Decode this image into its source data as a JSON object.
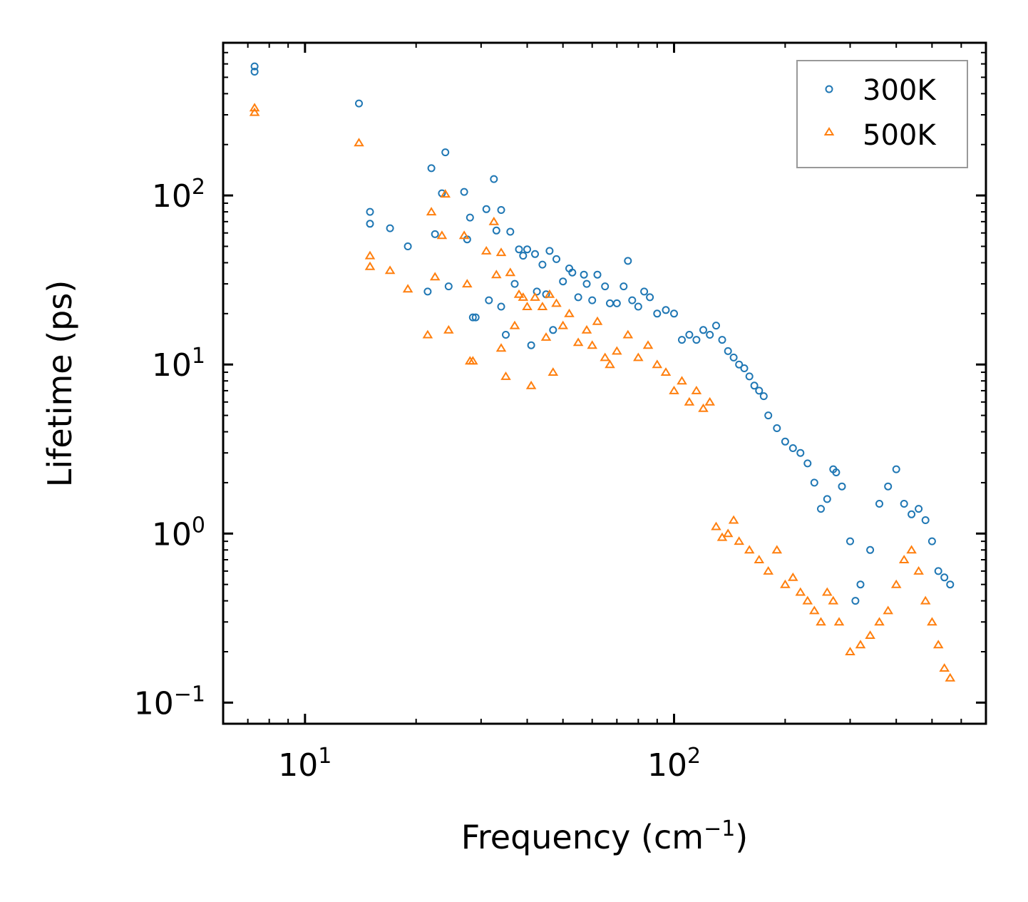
{
  "chart_data": {
    "type": "scatter",
    "title": "",
    "xlabel": "Frequency (cm",
    "xlabel_sup": "−1",
    "xlabel_suffix": ")",
    "ylabel": "Lifetime (ps)",
    "xscale": "log",
    "yscale": "log",
    "xlim": [
      6,
      700
    ],
    "ylim": [
      0.075,
      800
    ],
    "x_ticks": [
      {
        "value": 10,
        "base": "10",
        "exp": "1"
      },
      {
        "value": 100,
        "base": "10",
        "exp": "2"
      }
    ],
    "y_ticks": [
      {
        "value": 0.1,
        "base": "10",
        "exp": "−1"
      },
      {
        "value": 1,
        "base": "10",
        "exp": "0"
      },
      {
        "value": 10,
        "base": "10",
        "exp": "1"
      },
      {
        "value": 100,
        "base": "10",
        "exp": "2"
      }
    ],
    "legend_position": "top-right",
    "series": [
      {
        "name": "300K",
        "marker": "circle",
        "color": "#1f77b4",
        "points": [
          [
            7.3,
            580
          ],
          [
            7.3,
            540
          ],
          [
            14,
            350
          ],
          [
            15,
            80
          ],
          [
            15,
            68
          ],
          [
            17,
            64
          ],
          [
            19,
            50
          ],
          [
            21.5,
            27
          ],
          [
            22,
            145
          ],
          [
            22.5,
            59
          ],
          [
            23.5,
            103
          ],
          [
            24,
            180
          ],
          [
            24.5,
            29
          ],
          [
            27,
            105
          ],
          [
            27.5,
            55
          ],
          [
            28,
            74
          ],
          [
            28.5,
            19
          ],
          [
            29,
            19
          ],
          [
            31,
            83
          ],
          [
            31.5,
            24
          ],
          [
            32.5,
            125
          ],
          [
            33,
            62
          ],
          [
            34,
            82
          ],
          [
            34,
            22
          ],
          [
            35,
            15
          ],
          [
            36,
            61
          ],
          [
            37,
            30
          ],
          [
            38,
            48
          ],
          [
            39,
            44
          ],
          [
            40,
            48
          ],
          [
            41,
            13
          ],
          [
            42,
            45
          ],
          [
            42.5,
            27
          ],
          [
            44,
            39
          ],
          [
            45,
            26
          ],
          [
            46,
            47
          ],
          [
            47,
            16
          ],
          [
            48,
            42
          ],
          [
            50,
            31
          ],
          [
            52,
            37
          ],
          [
            53,
            35
          ],
          [
            55,
            25
          ],
          [
            57,
            34
          ],
          [
            58,
            30
          ],
          [
            60,
            24
          ],
          [
            62,
            34
          ],
          [
            65,
            29
          ],
          [
            67,
            23
          ],
          [
            70,
            23
          ],
          [
            73,
            29
          ],
          [
            75,
            41
          ],
          [
            77,
            24
          ],
          [
            80,
            22
          ],
          [
            83,
            27
          ],
          [
            86,
            25
          ],
          [
            90,
            20
          ],
          [
            95,
            21
          ],
          [
            100,
            20
          ],
          [
            105,
            14
          ],
          [
            110,
            15
          ],
          [
            115,
            14
          ],
          [
            120,
            16
          ],
          [
            125,
            15
          ],
          [
            130,
            17
          ],
          [
            135,
            14
          ],
          [
            140,
            12
          ],
          [
            145,
            11
          ],
          [
            150,
            10
          ],
          [
            155,
            9.5
          ],
          [
            160,
            8.5
          ],
          [
            165,
            7.5
          ],
          [
            170,
            7
          ],
          [
            175,
            6.5
          ],
          [
            180,
            5
          ],
          [
            190,
            4.2
          ],
          [
            200,
            3.5
          ],
          [
            210,
            3.2
          ],
          [
            220,
            3
          ],
          [
            230,
            2.6
          ],
          [
            240,
            2
          ],
          [
            250,
            1.4
          ],
          [
            260,
            1.6
          ],
          [
            270,
            2.4
          ],
          [
            275,
            2.3
          ],
          [
            285,
            1.9
          ],
          [
            300,
            0.9
          ],
          [
            310,
            0.4
          ],
          [
            320,
            0.5
          ],
          [
            340,
            0.8
          ],
          [
            360,
            1.5
          ],
          [
            380,
            1.9
          ],
          [
            400,
            2.4
          ],
          [
            420,
            1.5
          ],
          [
            440,
            1.3
          ],
          [
            460,
            1.4
          ],
          [
            480,
            1.2
          ],
          [
            500,
            0.9
          ],
          [
            520,
            0.6
          ],
          [
            540,
            0.55
          ],
          [
            560,
            0.5
          ]
        ]
      },
      {
        "name": "500K",
        "marker": "triangle",
        "color": "#ff7f0e",
        "points": [
          [
            7.3,
            330
          ],
          [
            7.3,
            310
          ],
          [
            14,
            205
          ],
          [
            15,
            44
          ],
          [
            15,
            38
          ],
          [
            17,
            36
          ],
          [
            19,
            28
          ],
          [
            21.5,
            15
          ],
          [
            22,
            80
          ],
          [
            22.5,
            33
          ],
          [
            23.5,
            58
          ],
          [
            24,
            102
          ],
          [
            24.5,
            16
          ],
          [
            27,
            58
          ],
          [
            27.5,
            30
          ],
          [
            28,
            10.5
          ],
          [
            28.5,
            10.5
          ],
          [
            31,
            47
          ],
          [
            32.5,
            70
          ],
          [
            33,
            34
          ],
          [
            34,
            46
          ],
          [
            34,
            12.5
          ],
          [
            35,
            8.5
          ],
          [
            36,
            35
          ],
          [
            37,
            17
          ],
          [
            38,
            26
          ],
          [
            39,
            25
          ],
          [
            40,
            22
          ],
          [
            41,
            7.5
          ],
          [
            42,
            25
          ],
          [
            44,
            22
          ],
          [
            45,
            14.5
          ],
          [
            46,
            26
          ],
          [
            47,
            9
          ],
          [
            48,
            23
          ],
          [
            50,
            17
          ],
          [
            52,
            20
          ],
          [
            55,
            13.5
          ],
          [
            58,
            16
          ],
          [
            60,
            13
          ],
          [
            62,
            18
          ],
          [
            65,
            11
          ],
          [
            67,
            10
          ],
          [
            70,
            12
          ],
          [
            75,
            15
          ],
          [
            80,
            11
          ],
          [
            85,
            13
          ],
          [
            90,
            10
          ],
          [
            95,
            9
          ],
          [
            100,
            7
          ],
          [
            105,
            8
          ],
          [
            110,
            6
          ],
          [
            115,
            7
          ],
          [
            120,
            5.5
          ],
          [
            125,
            6
          ],
          [
            130,
            1.1
          ],
          [
            135,
            0.95
          ],
          [
            140,
            1.0
          ],
          [
            145,
            1.2
          ],
          [
            150,
            0.9
          ],
          [
            160,
            0.8
          ],
          [
            170,
            0.7
          ],
          [
            180,
            0.6
          ],
          [
            190,
            0.8
          ],
          [
            200,
            0.5
          ],
          [
            210,
            0.55
          ],
          [
            220,
            0.45
          ],
          [
            230,
            0.4
          ],
          [
            240,
            0.35
          ],
          [
            250,
            0.3
          ],
          [
            260,
            0.45
          ],
          [
            270,
            0.4
          ],
          [
            280,
            0.3
          ],
          [
            300,
            0.2
          ],
          [
            320,
            0.22
          ],
          [
            340,
            0.25
          ],
          [
            360,
            0.3
          ],
          [
            380,
            0.35
          ],
          [
            400,
            0.5
          ],
          [
            420,
            0.7
          ],
          [
            440,
            0.8
          ],
          [
            460,
            0.6
          ],
          [
            480,
            0.4
          ],
          [
            500,
            0.3
          ],
          [
            520,
            0.22
          ],
          [
            540,
            0.16
          ],
          [
            560,
            0.14
          ]
        ]
      }
    ]
  }
}
